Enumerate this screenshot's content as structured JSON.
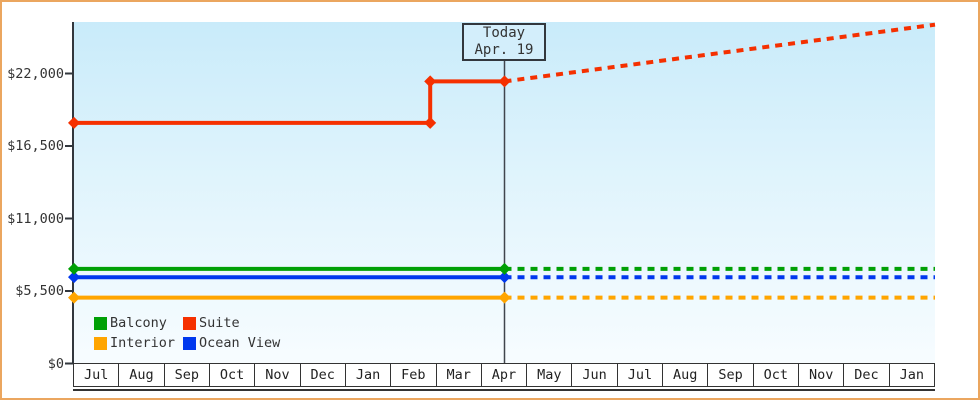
{
  "window": {
    "background_color": "#ffffff",
    "border_color": "#eba65f"
  },
  "chart_data": {
    "type": "line",
    "description": "Cruise cabin price history and projection by category",
    "grid": false,
    "x_axis": {
      "months": [
        "Jul",
        "Aug",
        "Sep",
        "Oct",
        "Nov",
        "Dec",
        "Jan",
        "Feb",
        "Mar",
        "Apr",
        "May",
        "Jun",
        "Jul",
        "Aug",
        "Sep",
        "Oct",
        "Nov",
        "Dec",
        "Jan"
      ]
    },
    "y_axis": {
      "ticks": [
        {
          "label": "$0",
          "value": 0
        },
        {
          "label": "$5,500",
          "value": 5500
        },
        {
          "label": "$11,000",
          "value": 11000
        },
        {
          "label": "$16,500",
          "value": 16500
        },
        {
          "label": "$22,000",
          "value": 22000
        }
      ],
      "top_value": 22000
    },
    "today_marker": {
      "line1": "Today",
      "line2": "Apr. 19",
      "month_position": 9.5
    },
    "series": [
      {
        "name": "Interior",
        "color": "#ffa500",
        "solid": [
          {
            "m": 0,
            "value": 5000
          },
          {
            "m": 9.5,
            "value": 5000
          }
        ],
        "projected": [
          {
            "m": 9.5,
            "value": 5000
          },
          {
            "m": 19,
            "value": 5000
          }
        ]
      },
      {
        "name": "Ocean View",
        "color": "#0038ee",
        "solid": [
          {
            "m": 0,
            "value": 6550
          },
          {
            "m": 9.5,
            "value": 6550
          }
        ],
        "projected": [
          {
            "m": 9.5,
            "value": 6550
          },
          {
            "m": 19,
            "value": 6550
          }
        ]
      },
      {
        "name": "Balcony",
        "color": "#00a005",
        "solid": [
          {
            "m": 0,
            "value": 7180
          },
          {
            "m": 9.5,
            "value": 7180
          }
        ],
        "projected": [
          {
            "m": 9.5,
            "value": 7180
          },
          {
            "m": 19,
            "value": 7180
          }
        ]
      },
      {
        "name": "Suite",
        "color": "#f53000",
        "solid": [
          {
            "m": 0,
            "value": 18250
          },
          {
            "m": 7.86,
            "value": 18250
          },
          {
            "m": 7.86,
            "value": 21400
          },
          {
            "m": 9.5,
            "value": 21400
          }
        ],
        "projected": [
          {
            "m": 9.5,
            "value": 21400
          },
          {
            "m": 19,
            "value": 25700
          }
        ]
      }
    ],
    "legend": {
      "items": [
        {
          "label": "Balcony",
          "color": "#00a005"
        },
        {
          "label": "Suite",
          "color": "#f53000"
        },
        {
          "label": "Interior",
          "color": "#ffa500"
        },
        {
          "label": "Ocean View",
          "color": "#0038ee"
        }
      ]
    }
  }
}
